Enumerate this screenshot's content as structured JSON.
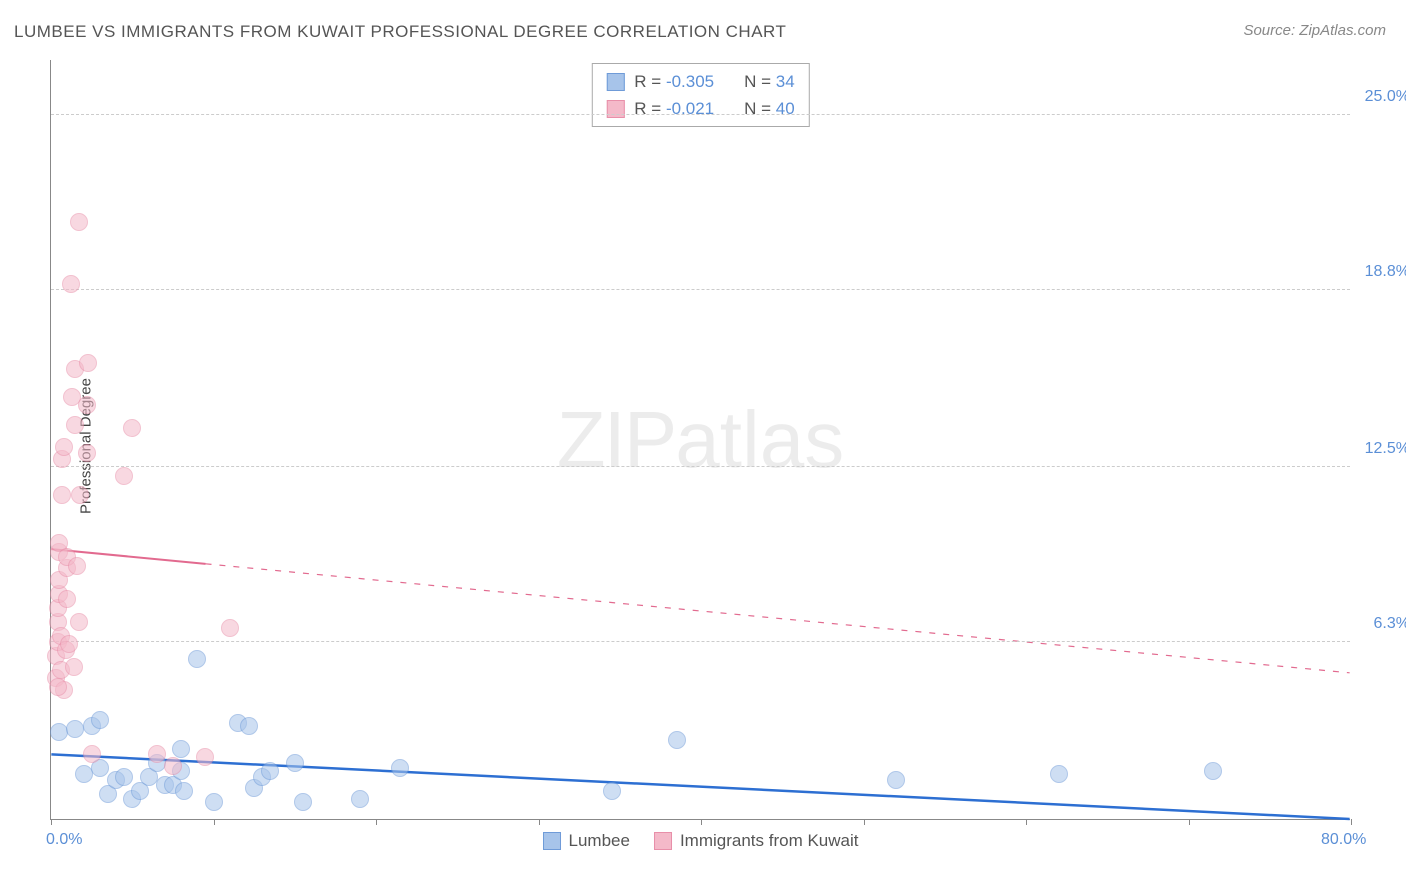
{
  "title": "LUMBEE VS IMMIGRANTS FROM KUWAIT PROFESSIONAL DEGREE CORRELATION CHART",
  "source": "Source: ZipAtlas.com",
  "y_axis_title": "Professional Degree",
  "watermark": {
    "zip": "ZIP",
    "atlas": "atlas"
  },
  "chart": {
    "type": "scatter",
    "xlim": [
      0,
      80
    ],
    "ylim": [
      0,
      27
    ],
    "x_ticks": [
      0,
      10,
      20,
      30,
      40,
      50,
      60,
      70,
      80
    ],
    "x_tick_labels": {
      "0": "0.0%",
      "80": "80.0%"
    },
    "y_ticks": [
      {
        "v": 6.3,
        "label": "6.3%"
      },
      {
        "v": 12.5,
        "label": "12.5%"
      },
      {
        "v": 18.8,
        "label": "18.8%"
      },
      {
        "v": 25.0,
        "label": "25.0%"
      }
    ],
    "grid_color": "#cccccc",
    "background_color": "#ffffff",
    "axis_color": "#888888",
    "tick_label_color": "#5b8fd6",
    "marker_radius": 9,
    "marker_opacity": 0.55,
    "series": [
      {
        "name": "Lumbee",
        "color_fill": "#a7c4ea",
        "color_stroke": "#6f9bd8",
        "r": "-0.305",
        "n": "34",
        "trend": {
          "x1": 0,
          "y1": 2.3,
          "x2": 80,
          "y2": 0.0,
          "solid_until_x": 80,
          "color": "#2d6fd2",
          "width": 2.5
        },
        "points": [
          [
            0.5,
            3.1
          ],
          [
            1.5,
            3.2
          ],
          [
            2.0,
            1.6
          ],
          [
            2.5,
            3.3
          ],
          [
            3.0,
            1.8
          ],
          [
            3.5,
            0.9
          ],
          [
            3.0,
            3.5
          ],
          [
            4.0,
            1.4
          ],
          [
            4.5,
            1.5
          ],
          [
            5.0,
            0.7
          ],
          [
            5.5,
            1.0
          ],
          [
            6.0,
            1.5
          ],
          [
            6.5,
            2.0
          ],
          [
            7.0,
            1.2
          ],
          [
            7.5,
            1.2
          ],
          [
            8.0,
            1.7
          ],
          [
            8.0,
            2.5
          ],
          [
            8.2,
            1.0
          ],
          [
            9.0,
            5.7
          ],
          [
            10.0,
            0.6
          ],
          [
            11.5,
            3.4
          ],
          [
            12.5,
            1.1
          ],
          [
            12.2,
            3.3
          ],
          [
            13.0,
            1.5
          ],
          [
            13.5,
            1.7
          ],
          [
            15.0,
            2.0
          ],
          [
            15.5,
            0.6
          ],
          [
            19.0,
            0.7
          ],
          [
            21.5,
            1.8
          ],
          [
            34.5,
            1.0
          ],
          [
            38.5,
            2.8
          ],
          [
            52.0,
            1.4
          ],
          [
            62.0,
            1.6
          ],
          [
            71.5,
            1.7
          ]
        ]
      },
      {
        "name": "Immigrants from Kuwait",
        "color_fill": "#f4b9c9",
        "color_stroke": "#e88fa9",
        "r": "-0.021",
        "n": "40",
        "trend": {
          "x1": 0,
          "y1": 9.6,
          "x2": 80,
          "y2": 5.2,
          "solid_until_x": 9.5,
          "color": "#e26a8f",
          "width": 2
        },
        "points": [
          [
            0.3,
            5.0
          ],
          [
            0.3,
            5.8
          ],
          [
            0.4,
            6.3
          ],
          [
            0.4,
            7.0
          ],
          [
            0.4,
            7.5
          ],
          [
            0.5,
            8.0
          ],
          [
            0.5,
            8.5
          ],
          [
            0.5,
            9.5
          ],
          [
            0.5,
            9.8
          ],
          [
            0.6,
            6.5
          ],
          [
            0.7,
            11.5
          ],
          [
            0.7,
            12.8
          ],
          [
            0.8,
            13.2
          ],
          [
            0.8,
            4.6
          ],
          [
            1.0,
            7.8
          ],
          [
            1.0,
            8.9
          ],
          [
            1.0,
            9.3
          ],
          [
            1.2,
            19.0
          ],
          [
            1.3,
            15.0
          ],
          [
            1.5,
            16.0
          ],
          [
            1.5,
            14.0
          ],
          [
            1.6,
            9.0
          ],
          [
            1.7,
            21.2
          ],
          [
            1.7,
            7.0
          ],
          [
            1.8,
            11.5
          ],
          [
            2.2,
            13.0
          ],
          [
            2.2,
            14.7
          ],
          [
            2.3,
            16.2
          ],
          [
            2.5,
            2.3
          ],
          [
            4.5,
            12.2
          ],
          [
            5.0,
            13.9
          ],
          [
            6.5,
            2.3
          ],
          [
            7.5,
            1.9
          ],
          [
            9.5,
            2.2
          ],
          [
            11.0,
            6.8
          ],
          [
            0.6,
            5.3
          ],
          [
            0.9,
            6.0
          ],
          [
            1.4,
            5.4
          ],
          [
            0.4,
            4.7
          ],
          [
            1.1,
            6.2
          ]
        ]
      }
    ]
  },
  "legend_bottom": [
    {
      "label": "Lumbee",
      "fill": "#a7c4ea",
      "stroke": "#6f9bd8"
    },
    {
      "label": "Immigrants from Kuwait",
      "fill": "#f4b9c9",
      "stroke": "#e88fa9"
    }
  ]
}
